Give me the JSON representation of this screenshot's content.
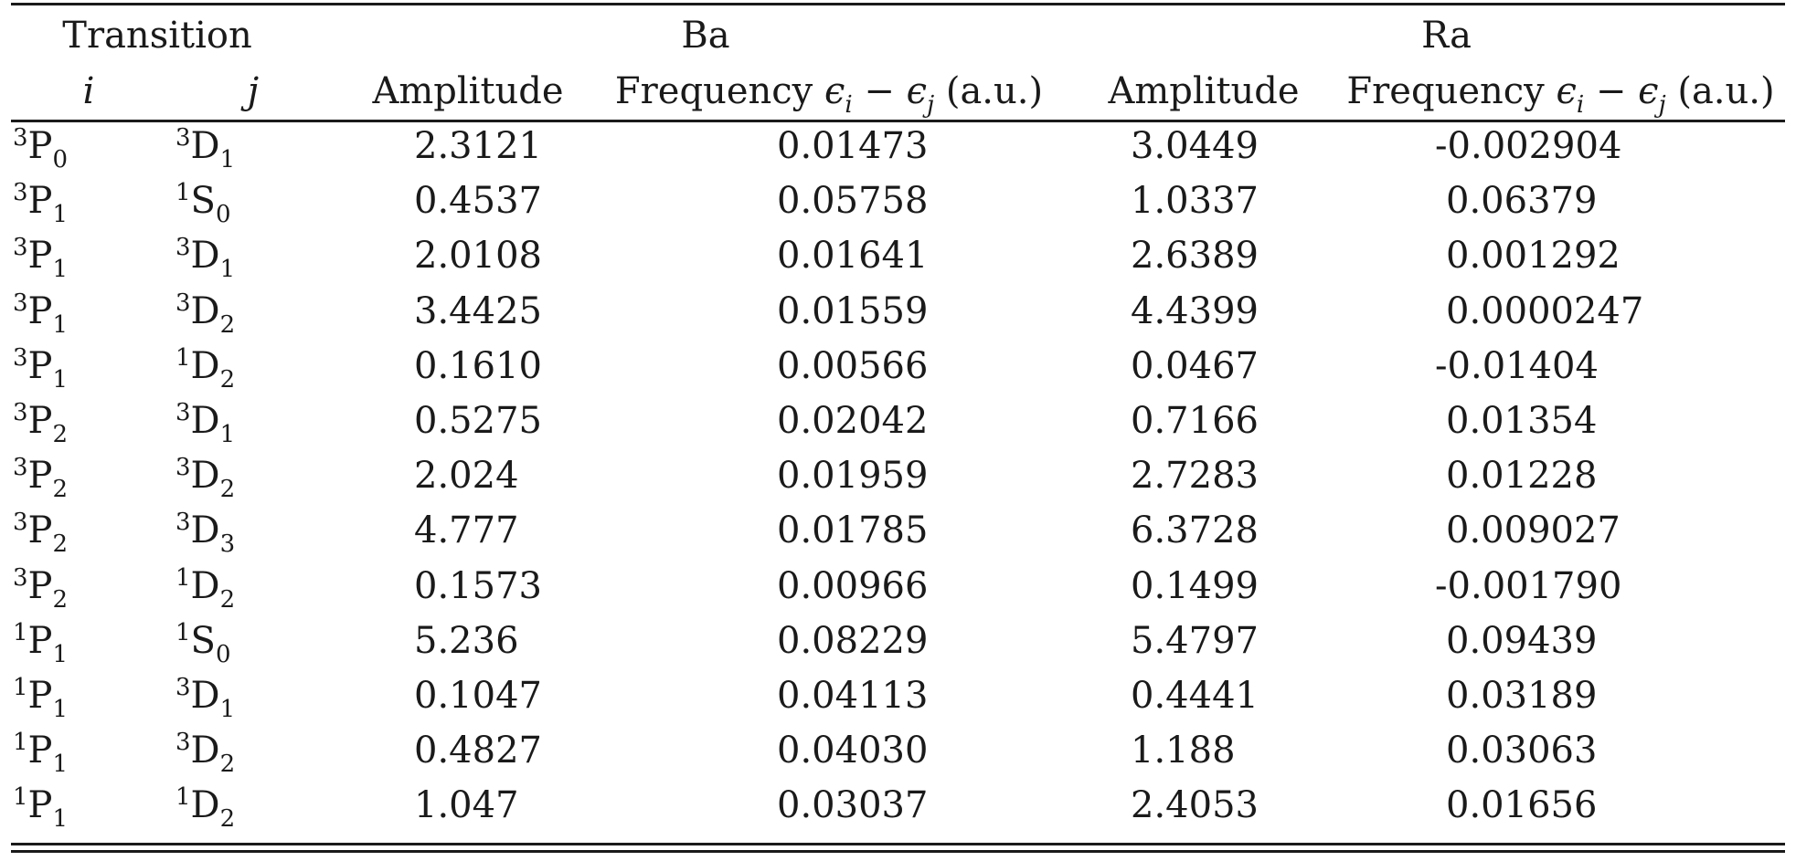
{
  "table": {
    "group_headers": {
      "transition": "Transition",
      "ba": "Ba",
      "ra": "Ra"
    },
    "sub_headers": {
      "i": "i",
      "j": "j",
      "amplitude_ba": "Amplitude",
      "frequency_ba_prefix": "Frequency ",
      "frequency_ba_math_e1": "ϵ",
      "frequency_ba_math_i": "i",
      "frequency_ba_math_minus": " − ",
      "frequency_ba_math_e2": "ϵ",
      "frequency_ba_math_j": "j",
      "frequency_ba_suffix": " (a.u.)",
      "amplitude_ra": "Amplitude",
      "frequency_ra_prefix": "Frequency ",
      "frequency_ra_math_e1": "ϵ",
      "frequency_ra_math_i": "i",
      "frequency_ra_math_minus": " − ",
      "frequency_ra_math_e2": "ϵ",
      "frequency_ra_math_j": "j",
      "frequency_ra_suffix": " (a.u.)"
    },
    "rows": [
      {
        "i_mult": "3",
        "i_letter": "P",
        "i_sub": "0",
        "j_mult": "3",
        "j_letter": "D",
        "j_sub": "1",
        "ba_amp": "2.3121",
        "ba_freq": "0.01473",
        "ra_amp": "3.0449",
        "ra_freq": "-0.002904"
      },
      {
        "i_mult": "3",
        "i_letter": "P",
        "i_sub": "1",
        "j_mult": "1",
        "j_letter": "S",
        "j_sub": "0",
        "ba_amp": "0.4537",
        "ba_freq": "0.05758",
        "ra_amp": "1.0337",
        "ra_freq": "0.06379"
      },
      {
        "i_mult": "3",
        "i_letter": "P",
        "i_sub": "1",
        "j_mult": "3",
        "j_letter": "D",
        "j_sub": "1",
        "ba_amp": "2.0108",
        "ba_freq": "0.01641",
        "ra_amp": "2.6389",
        "ra_freq": "0.001292"
      },
      {
        "i_mult": "3",
        "i_letter": "P",
        "i_sub": "1",
        "j_mult": "3",
        "j_letter": "D",
        "j_sub": "2",
        "ba_amp": "3.4425",
        "ba_freq": "0.01559",
        "ra_amp": "4.4399",
        "ra_freq": "0.0000247"
      },
      {
        "i_mult": "3",
        "i_letter": "P",
        "i_sub": "1",
        "j_mult": "1",
        "j_letter": "D",
        "j_sub": "2",
        "ba_amp": "0.1610",
        "ba_freq": "0.00566",
        "ra_amp": "0.0467",
        "ra_freq": "-0.01404"
      },
      {
        "i_mult": "3",
        "i_letter": "P",
        "i_sub": "2",
        "j_mult": "3",
        "j_letter": "D",
        "j_sub": "1",
        "ba_amp": "0.5275",
        "ba_freq": "0.02042",
        "ra_amp": "0.7166",
        "ra_freq": "0.01354"
      },
      {
        "i_mult": "3",
        "i_letter": "P",
        "i_sub": "2",
        "j_mult": "3",
        "j_letter": "D",
        "j_sub": "2",
        "ba_amp": "2.024",
        "ba_freq": "0.01959",
        "ra_amp": "2.7283",
        "ra_freq": "0.01228"
      },
      {
        "i_mult": "3",
        "i_letter": "P",
        "i_sub": "2",
        "j_mult": "3",
        "j_letter": "D",
        "j_sub": "3",
        "ba_amp": "4.777",
        "ba_freq": "0.01785",
        "ra_amp": "6.3728",
        "ra_freq": "0.009027"
      },
      {
        "i_mult": "3",
        "i_letter": "P",
        "i_sub": "2",
        "j_mult": "1",
        "j_letter": "D",
        "j_sub": "2",
        "ba_amp": "0.1573",
        "ba_freq": "0.00966",
        "ra_amp": "0.1499",
        "ra_freq": "-0.001790"
      },
      {
        "i_mult": "1",
        "i_letter": "P",
        "i_sub": "1",
        "j_mult": "1",
        "j_letter": "S",
        "j_sub": "0",
        "ba_amp": "5.236",
        "ba_freq": "0.08229",
        "ra_amp": "5.4797",
        "ra_freq": "0.09439"
      },
      {
        "i_mult": "1",
        "i_letter": "P",
        "i_sub": "1",
        "j_mult": "3",
        "j_letter": "D",
        "j_sub": "1",
        "ba_amp": "0.1047",
        "ba_freq": "0.04113",
        "ra_amp": "0.4441",
        "ra_freq": "0.03189"
      },
      {
        "i_mult": "1",
        "i_letter": "P",
        "i_sub": "1",
        "j_mult": "3",
        "j_letter": "D",
        "j_sub": "2",
        "ba_amp": "0.4827",
        "ba_freq": "0.04030",
        "ra_amp": "1.188",
        "ra_freq": "0.03063"
      },
      {
        "i_mult": "1",
        "i_letter": "P",
        "i_sub": "1",
        "j_mult": "1",
        "j_letter": "D",
        "j_sub": "2",
        "ba_amp": "1.047",
        "ba_freq": "0.03037",
        "ra_amp": "2.4053",
        "ra_freq": "0.01656"
      }
    ]
  }
}
